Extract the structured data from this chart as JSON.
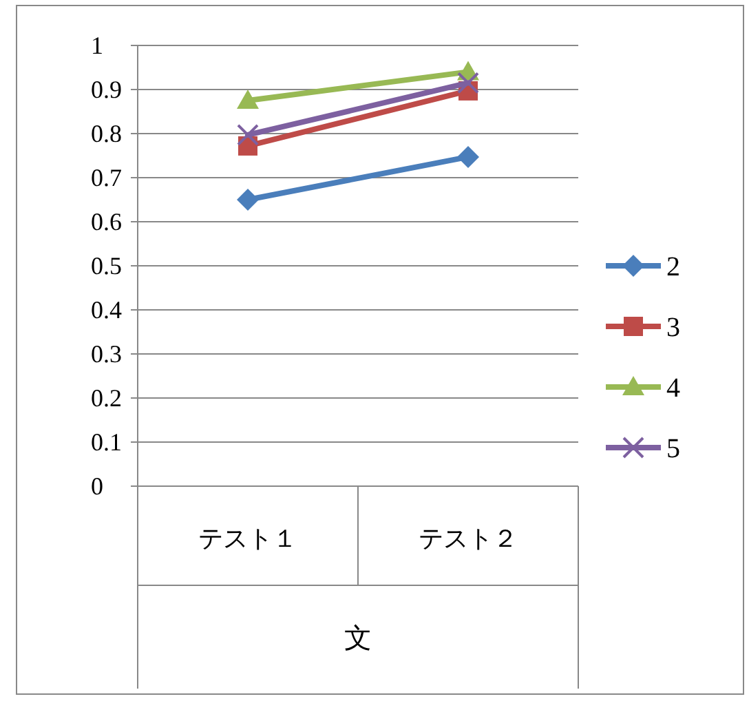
{
  "chart_data": {
    "type": "line",
    "categories": [
      "テスト１",
      "テスト２"
    ],
    "xlabel": "文",
    "ylim": [
      0,
      1
    ],
    "yticks": [
      0,
      0.1,
      0.2,
      0.3,
      0.4,
      0.5,
      0.6,
      0.7,
      0.8,
      0.9,
      1
    ],
    "grid": "y",
    "legend": "right",
    "line_style": "solid",
    "series": [
      {
        "name": "2",
        "color": "#4a7ebb",
        "marker": "diamond",
        "values": [
          0.65,
          0.747
        ]
      },
      {
        "name": "3",
        "color": "#be4b48",
        "marker": "square",
        "values": [
          0.772,
          0.897
        ]
      },
      {
        "name": "4",
        "color": "#98b954",
        "marker": "triangle",
        "values": [
          0.875,
          0.94
        ]
      },
      {
        "name": "5",
        "color": "#7d60a0",
        "marker": "cross",
        "values": [
          0.797,
          0.915
        ]
      }
    ]
  }
}
